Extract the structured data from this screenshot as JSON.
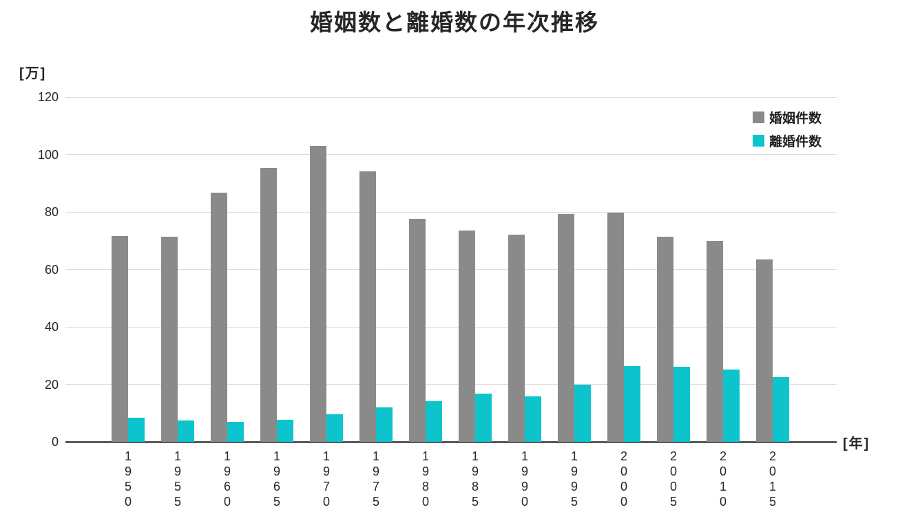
{
  "title": "婚姻数と離婚数の年次推移",
  "y_axis_unit": "[万]",
  "x_axis_unit": "[年]",
  "legend": [
    {
      "label": "婚姻件数",
      "color": "#8a8a8a"
    },
    {
      "label": "離婚件数",
      "color": "#0dc4cc"
    }
  ],
  "chart_data": {
    "type": "bar",
    "title": "婚姻数と離婚数の年次推移",
    "categories": [
      "1950",
      "1955",
      "1960",
      "1965",
      "1970",
      "1975",
      "1980",
      "1985",
      "1990",
      "1995",
      "2000",
      "2005",
      "2010",
      "2015"
    ],
    "series": [
      {
        "key": "marriages",
        "name": "婚姻件数",
        "color": "#8a8a8a",
        "values": [
          71.5,
          71.4,
          86.6,
          95.4,
          102.9,
          94.2,
          77.5,
          73.6,
          72.2,
          79.2,
          79.8,
          71.4,
          70.0,
          63.5
        ]
      },
      {
        "key": "divorces",
        "name": "離婚件数",
        "color": "#0dc4cc",
        "values": [
          8.4,
          7.5,
          6.9,
          7.7,
          9.6,
          11.9,
          14.2,
          16.7,
          15.8,
          19.9,
          26.4,
          26.2,
          25.1,
          22.6
        ]
      }
    ],
    "xlabel": "[年]",
    "ylabel": "[万]",
    "ylim": [
      0,
      120
    ],
    "ytick_interval": 20,
    "yticks": [
      0,
      20,
      40,
      60,
      80,
      100,
      120
    ],
    "grid": true,
    "legend_position": "top-right"
  }
}
